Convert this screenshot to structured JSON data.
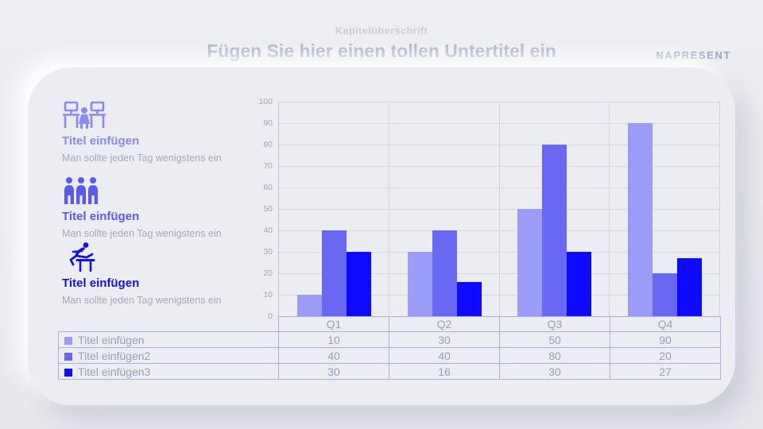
{
  "header": {
    "kicker": "Kapitelüberschrift",
    "title": "Fügen Sie hier einen tollen Untertitel ein",
    "logo": "NAPRESENT"
  },
  "features": [
    {
      "icon": "workstation-icon",
      "color": "#8a8af3",
      "title": "Titel einfügen",
      "description": "Man sollte jeden Tag wenigstens ein"
    },
    {
      "icon": "team-icon",
      "color": "#5a5aef",
      "title": "Titel einfügen",
      "description": "Man sollte jeden Tag wenigstens ein"
    },
    {
      "icon": "hurdler-icon",
      "color": "#1512e3",
      "title": "Titel einfügen",
      "description": "Man sollte jeden Tag wenigstens ein"
    }
  ],
  "chart_data": {
    "type": "bar",
    "categories": [
      "Q1",
      "Q2",
      "Q3",
      "Q4"
    ],
    "series": [
      {
        "name": "Titel einfügen",
        "color": "#9b9bf8",
        "values": [
          10,
          30,
          50,
          90
        ]
      },
      {
        "name": "Titel einfügen2",
        "color": "#6868f3",
        "values": [
          40,
          40,
          80,
          20
        ]
      },
      {
        "name": "Titel einfügen3",
        "color": "#0d0aff",
        "values": [
          30,
          16,
          30,
          27
        ]
      }
    ],
    "ylim": [
      0,
      100
    ],
    "ytick_step": 10,
    "grid": true,
    "legend_position": "table-below-chart"
  }
}
